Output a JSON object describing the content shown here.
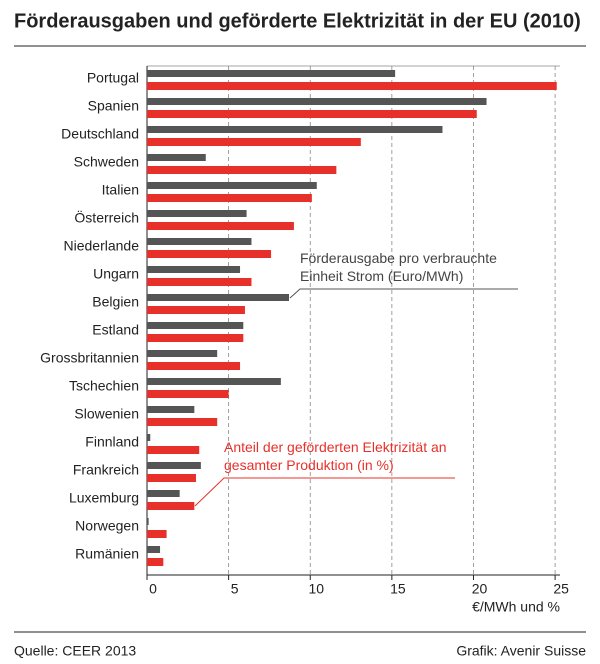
{
  "chart_data": {
    "type": "bar",
    "orientation": "horizontal",
    "title": "Förderausgaben und geförderte Elektrizität in der EU (2010)",
    "categories": [
      "Portugal",
      "Spanien",
      "Deutschland",
      "Schweden",
      "Italien",
      "Österreich",
      "Niederlande",
      "Ungarn",
      "Belgien",
      "Estland",
      "Grossbritannien",
      "Tschechien",
      "Slowenien",
      "Finnland",
      "Frankreich",
      "Luxemburg",
      "Norwegen",
      "Rumänien"
    ],
    "series": [
      {
        "name": "Förderausgabe pro verbrauchte Einheit Strom (Euro/MWh)",
        "color": "#555555",
        "values": [
          15.2,
          20.8,
          18.1,
          3.6,
          10.4,
          6.1,
          6.4,
          5.7,
          8.7,
          5.9,
          4.3,
          8.2,
          2.9,
          0.2,
          3.3,
          2.0,
          0.1,
          0.8
        ]
      },
      {
        "name": "Anteil der geförderten Elektrizität an gesamter Produktion (in %)",
        "color": "#e8302a",
        "values": [
          25.1,
          20.2,
          13.1,
          11.6,
          10.1,
          9.0,
          7.6,
          6.4,
          6.0,
          5.9,
          5.7,
          5.0,
          4.3,
          3.2,
          3.0,
          2.9,
          1.2,
          1.0
        ]
      }
    ],
    "xlim": [
      0,
      25.3
    ],
    "xticks": [
      0,
      5,
      10,
      15,
      20,
      25
    ],
    "grid": true,
    "xlabel": "€/MWh und %",
    "source": "Quelle: CEER 2013",
    "credit": "Grafik: Avenir Suisse"
  }
}
